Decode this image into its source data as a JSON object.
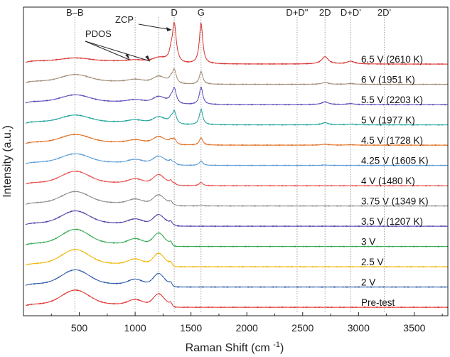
{
  "chart_data": {
    "type": "line",
    "xlabel": "Raman Shift (cm ",
    "xlabel_sup": "-1",
    "xlabel_tail": ")",
    "ylabel": "Intensity (a.u.)",
    "xlim": [
      0,
      3800
    ],
    "xticks": [
      500,
      1000,
      1500,
      2000,
      2500,
      3000,
      3500
    ],
    "peak_markers": [
      {
        "label": "B–B",
        "x": 460
      },
      {
        "label": "D",
        "x": 1350
      },
      {
        "label": "G",
        "x": 1590
      },
      {
        "label": "D+D\"",
        "x": 2450
      },
      {
        "label": "2D",
        "x": 2700
      },
      {
        "label": "D+D'",
        "x": 2930
      },
      {
        "label": "2D'",
        "x": 3230
      }
    ],
    "extra_dotted_x": [
      1000,
      1210
    ],
    "annotations": [
      {
        "label": "ZCP",
        "points_to_x": 1325
      },
      {
        "label": "PDOS",
        "points_to_x": [
          1000,
          1210
        ]
      }
    ],
    "series": [
      {
        "name": "Pre-test",
        "color": "#e0302c",
        "peaks": {
          "bb": 0.75,
          "pd1": 0.25,
          "pd2": 0.55,
          "zcp": 0.12,
          "D": 0.0,
          "G": 0.0,
          "d2": 0.0,
          "dd": 0.0
        }
      },
      {
        "name": "2 V",
        "color": "#2c5aa8",
        "peaks": {
          "bb": 0.75,
          "pd1": 0.25,
          "pd2": 0.55,
          "zcp": 0.12,
          "D": 0.0,
          "G": 0.0,
          "d2": 0.0,
          "dd": 0.0
        }
      },
      {
        "name": "2.5 V",
        "color": "#f0b400",
        "peaks": {
          "bb": 0.75,
          "pd1": 0.25,
          "pd2": 0.55,
          "zcp": 0.12,
          "D": 0.0,
          "G": 0.0,
          "d2": 0.0,
          "dd": 0.0
        }
      },
      {
        "name": "3 V",
        "color": "#2fa84f",
        "peaks": {
          "bb": 0.75,
          "pd1": 0.25,
          "pd2": 0.55,
          "zcp": 0.12,
          "D": 0.0,
          "G": 0.0,
          "d2": 0.0,
          "dd": 0.0
        }
      },
      {
        "name": "3.5 V (1207 K)",
        "color": "#4a3ea6",
        "peaks": {
          "bb": 0.65,
          "pd1": 0.22,
          "pd2": 0.45,
          "zcp": 0.12,
          "D": 0.05,
          "G": 0.0,
          "d2": 0.0,
          "dd": 0.0
        }
      },
      {
        "name": "3.75 V (1349 K)",
        "color": "#8a8a8a",
        "peaks": {
          "bb": 0.6,
          "pd1": 0.2,
          "pd2": 0.42,
          "zcp": 0.12,
          "D": 0.06,
          "G": 0.05,
          "d2": 0.0,
          "dd": 0.0
        }
      },
      {
        "name": "4 V (1480 K)",
        "color": "#e84a4a",
        "peaks": {
          "bb": 0.6,
          "pd1": 0.2,
          "pd2": 0.42,
          "zcp": 0.12,
          "D": 0.12,
          "G": 0.18,
          "d2": 0.0,
          "dd": 0.0
        }
      },
      {
        "name": "4.25 V (1605 K)",
        "color": "#5a9bd6",
        "peaks": {
          "bb": 0.45,
          "pd1": 0.15,
          "pd2": 0.32,
          "zcp": 0.1,
          "D": 0.18,
          "G": 0.25,
          "d2": 0.02,
          "dd": 0.0
        }
      },
      {
        "name": "4.5 V (1728 K)",
        "color": "#e06a1c",
        "peaks": {
          "bb": 0.4,
          "pd1": 0.12,
          "pd2": 0.28,
          "zcp": 0.1,
          "D": 0.35,
          "G": 0.4,
          "d2": 0.05,
          "dd": 0.02
        }
      },
      {
        "name": "5 V (1977 K)",
        "color": "#1aa39a",
        "peaks": {
          "bb": 0.35,
          "pd1": 0.1,
          "pd2": 0.25,
          "zcp": 0.12,
          "D": 0.75,
          "G": 0.85,
          "d2": 0.12,
          "dd": 0.04
        }
      },
      {
        "name": "5.5 V (2203 K)",
        "color": "#5a4ab8",
        "peaks": {
          "bb": 0.35,
          "pd1": 0.1,
          "pd2": 0.25,
          "zcp": 0.12,
          "D": 0.9,
          "G": 0.95,
          "d2": 0.15,
          "dd": 0.05
        }
      },
      {
        "name": "6 V (1951 K)",
        "color": "#a08a72",
        "peaks": {
          "bb": 0.35,
          "pd1": 0.1,
          "pd2": 0.25,
          "zcp": 0.12,
          "D": 0.8,
          "G": 0.7,
          "d2": 0.1,
          "dd": 0.04
        }
      },
      {
        "name": "6.5 V (2610 K)",
        "color": "#d8302c",
        "peaks": {
          "bb": 0.15,
          "pd1": 0.05,
          "pd2": 0.15,
          "zcp": 0.25,
          "D": 2.2,
          "G": 2.2,
          "d2": 0.4,
          "dd": 0.15
        }
      }
    ]
  }
}
